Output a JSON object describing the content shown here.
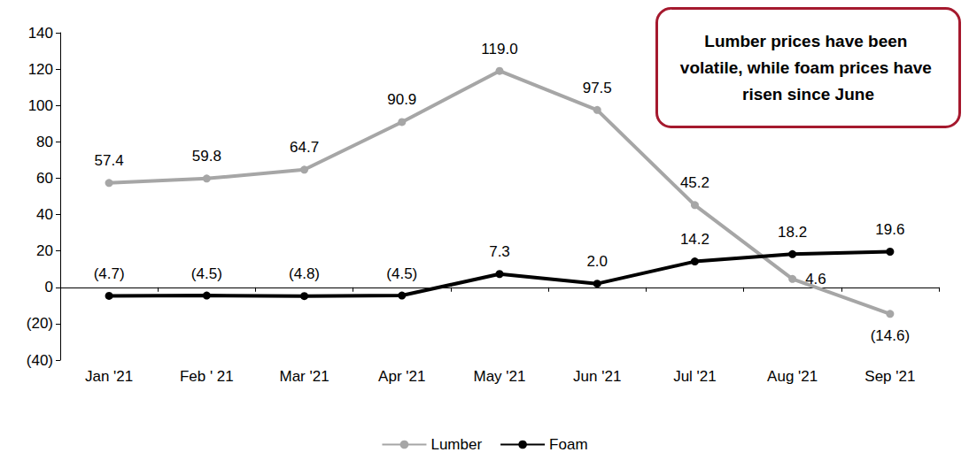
{
  "chart_data": {
    "type": "line",
    "annotation": "Lumber prices have been volatile, while foam prices have risen since June",
    "categories": [
      "Jan '21",
      "Feb ' 21",
      "Mar '21",
      "Apr '21",
      "May '21",
      "Jun '21",
      "Jul '21",
      "Aug '21",
      "Sep '21"
    ],
    "series": [
      {
        "name": "Lumber",
        "color": "#a6a6a6",
        "marker": "circle",
        "values": [
          57.4,
          59.8,
          64.7,
          90.9,
          119.0,
          97.5,
          45.2,
          4.6,
          -14.6
        ],
        "value_labels": [
          "57.4",
          "59.8",
          "64.7",
          "90.9",
          "119.0",
          "97.5",
          "45.2",
          "4.6",
          "(14.6)"
        ]
      },
      {
        "name": "Foam",
        "color": "#000000",
        "marker": "circle",
        "values": [
          -4.7,
          -4.5,
          -4.8,
          -4.5,
          7.3,
          2.0,
          14.2,
          18.2,
          19.6
        ],
        "value_labels": [
          "(4.7)",
          "(4.5)",
          "(4.8)",
          "(4.5)",
          "7.3",
          "2.0",
          "14.2",
          "18.2",
          "19.6"
        ]
      }
    ],
    "ylim": [
      -40,
      140
    ],
    "yticks": [
      {
        "value": -40,
        "label": "(40)"
      },
      {
        "value": -20,
        "label": "(20)"
      },
      0,
      20,
      40,
      60,
      80,
      100,
      120,
      140
    ],
    "grid": false,
    "legend": "bottom",
    "data_labels": true
  }
}
